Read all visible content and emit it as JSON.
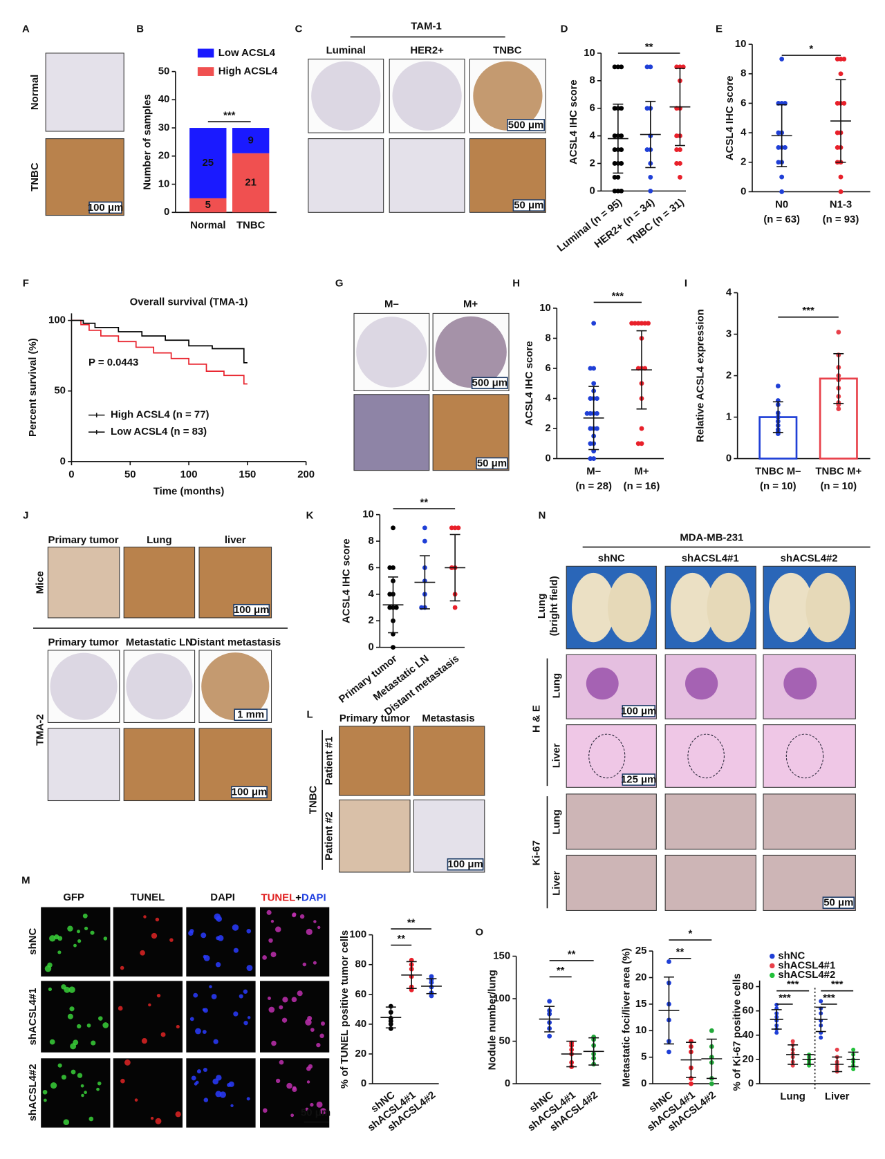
{
  "chart_data": [
    {
      "panel": "B",
      "type": "stacked_bar",
      "y_label": "Number of samples",
      "categories": [
        "Normal",
        "TNBC"
      ],
      "series": [
        {
          "name": "High ACSL4",
          "color": "#f05050",
          "values": [
            5,
            21
          ]
        },
        {
          "name": "Low ACSL4",
          "color": "#1a1aff",
          "values": [
            25,
            9
          ]
        }
      ],
      "ylim": [
        0,
        50
      ],
      "yticks": [
        0,
        10,
        20,
        30,
        40,
        50
      ],
      "significance": [
        {
          "pair": [
            0,
            1
          ],
          "label": "***"
        }
      ]
    },
    {
      "panel": "D",
      "type": "dot",
      "y_label": "ACSL4 IHC score",
      "categories": [
        "Luminal (n = 95)",
        "HER2+ (n = 34)",
        "TNBC (n = 31)"
      ],
      "groups": [
        {
          "color": "#000000",
          "values": [
            0,
            0,
            0,
            1,
            1,
            2,
            2,
            2,
            3,
            3,
            3,
            4,
            4,
            4,
            6,
            6,
            6,
            9,
            9,
            9
          ],
          "mean": 3.8,
          "sd": 2.5
        },
        {
          "color": "#1f3fd6",
          "values": [
            0,
            1,
            2,
            3,
            3,
            4,
            6,
            6,
            9,
            9
          ],
          "mean": 4.1,
          "sd": 2.4
        },
        {
          "color": "#e8202a",
          "values": [
            1,
            2,
            2,
            3,
            3,
            4,
            4,
            6,
            6,
            8,
            9,
            9,
            9
          ],
          "mean": 6.1,
          "sd": 2.8
        }
      ],
      "ylim": [
        0,
        10
      ],
      "yticks": [
        0,
        2,
        4,
        6,
        8,
        10
      ],
      "significance": [
        {
          "pair": [
            0,
            2
          ],
          "label": "**"
        }
      ]
    },
    {
      "panel": "E",
      "type": "dot",
      "y_label": "ACSL4 IHC score",
      "categories": [
        "N0",
        "N1-3"
      ],
      "category_notes": [
        "(n = 63)",
        "(n = 93)"
      ],
      "groups": [
        {
          "color": "#1f3fd6",
          "values": [
            0,
            1,
            2,
            2,
            3,
            3,
            3,
            4,
            4,
            6,
            6,
            6,
            9
          ],
          "mean": 3.8,
          "sd": 2.1
        },
        {
          "color": "#e8202a",
          "values": [
            0,
            1,
            2,
            2,
            3,
            3,
            4,
            4,
            6,
            6,
            6,
            8,
            9,
            9,
            9
          ],
          "mean": 4.8,
          "sd": 2.8
        }
      ],
      "ylim": [
        0,
        10
      ],
      "yticks": [
        0,
        2,
        4,
        6,
        8,
        10
      ],
      "significance": [
        {
          "pair": [
            0,
            1
          ],
          "label": "*"
        }
      ]
    },
    {
      "panel": "F",
      "type": "line",
      "title": "Overall survival (TMA-1)",
      "x_label": "Time (months)",
      "y_label": "Percent survival (%)",
      "annotation": "P = 0.0443",
      "xlim": [
        0,
        200
      ],
      "xticks": [
        0,
        50,
        100,
        150,
        200
      ],
      "ylim": [
        0,
        105
      ],
      "yticks": [
        0,
        50,
        100
      ],
      "series": [
        {
          "name": "High ACSL4 (n = 77)",
          "color": "#e8202a",
          "x": [
            0,
            8,
            8,
            15,
            15,
            25,
            25,
            40,
            40,
            55,
            55,
            70,
            70,
            85,
            85,
            100,
            100,
            115,
            115,
            130,
            130,
            147,
            147,
            150
          ],
          "values": [
            100,
            100,
            97,
            97,
            93,
            93,
            89,
            89,
            85,
            85,
            81,
            81,
            77,
            77,
            73,
            73,
            69,
            69,
            64,
            64,
            61,
            61,
            55,
            55
          ]
        },
        {
          "name": "Low ACSL4 (n = 83)",
          "color": "#000000",
          "x": [
            0,
            10,
            10,
            20,
            20,
            40,
            40,
            60,
            60,
            80,
            80,
            100,
            100,
            120,
            120,
            147,
            147,
            150
          ],
          "values": [
            100,
            100,
            98,
            98,
            95,
            95,
            92,
            92,
            89,
            89,
            86,
            86,
            82,
            82,
            80,
            80,
            70,
            70
          ]
        }
      ]
    },
    {
      "panel": "H",
      "type": "dot",
      "y_label": "ACSL4 IHC score",
      "categories": [
        "M–",
        "M+"
      ],
      "category_notes": [
        "(n = 28)",
        "(n = 16)"
      ],
      "groups": [
        {
          "color": "#1f3fd6",
          "values": [
            0,
            0,
            0.5,
            1,
            1,
            1.5,
            2,
            2,
            2,
            3,
            3,
            3,
            3,
            4,
            4,
            4,
            4.5,
            5,
            6,
            6,
            9
          ],
          "mean": 2.7,
          "sd": 2.1
        },
        {
          "color": "#e8202a",
          "values": [
            1,
            1,
            2,
            4,
            5,
            6,
            6,
            6,
            8,
            9,
            9,
            9,
            9,
            9,
            9
          ],
          "mean": 5.9,
          "sd": 2.6
        }
      ],
      "ylim": [
        0,
        10
      ],
      "yticks": [
        0,
        2,
        4,
        6,
        8,
        10
      ],
      "significance": [
        {
          "pair": [
            0,
            1
          ],
          "label": "***"
        }
      ]
    },
    {
      "panel": "I",
      "type": "bar_dot",
      "y_label": "Relative ACSL4 expression",
      "categories": [
        "TNBC M–",
        "TNBC M+"
      ],
      "category_notes": [
        "(n = 10)",
        "(n = 10)"
      ],
      "groups": [
        {
          "color": "#1f3fd6",
          "values": [
            0.6,
            0.65,
            0.7,
            0.8,
            0.9,
            1.0,
            1.1,
            1.3,
            1.4,
            1.75
          ],
          "mean": 1.0,
          "sd": 0.37
        },
        {
          "color": "#e8404a",
          "values": [
            1.2,
            1.3,
            1.35,
            1.5,
            1.7,
            1.9,
            2.0,
            2.2,
            2.5,
            3.05
          ],
          "mean": 1.93,
          "sd": 0.6
        }
      ],
      "ylim": [
        0,
        4
      ],
      "yticks": [
        0,
        1,
        2,
        3,
        4
      ],
      "significance": [
        {
          "pair": [
            0,
            1
          ],
          "label": "***"
        }
      ]
    },
    {
      "panel": "K",
      "type": "dot",
      "y_label": "ACSL4 IHC score",
      "categories": [
        "Primary tumor",
        "Metastatic LN",
        "Distant metastasis"
      ],
      "groups": [
        {
          "color": "#000000",
          "values": [
            0,
            1,
            2,
            3,
            3,
            3,
            4,
            4,
            5,
            6,
            6,
            9
          ],
          "mean": 3.2,
          "sd": 2.1
        },
        {
          "color": "#1f3fd6",
          "values": [
            3,
            3,
            4,
            5,
            6,
            8,
            9
          ],
          "mean": 4.9,
          "sd": 2.0
        },
        {
          "color": "#e8202a",
          "values": [
            3,
            4,
            6,
            6,
            9,
            9,
            9
          ],
          "mean": 6.0,
          "sd": 2.5
        }
      ],
      "ylim": [
        0,
        10
      ],
      "yticks": [
        0,
        2,
        4,
        6,
        8,
        10
      ],
      "significance": [
        {
          "pair": [
            0,
            2
          ],
          "label": "**"
        }
      ]
    },
    {
      "type": "dot",
      "y_label": "% of TUNEL positive tumor cells",
      "categories": [
        "shNC",
        "shACSL4#1",
        "shACSL4#2"
      ],
      "groups": [
        {
          "color": "#000000",
          "values": [
            37,
            40,
            42,
            44,
            48,
            52
          ],
          "mean": 44.5,
          "sd": 7
        },
        {
          "color": "#e8202a",
          "values": [
            63,
            65,
            72,
            77,
            80,
            83
          ],
          "mean": 73,
          "sd": 9
        },
        {
          "color": "#1f3fd6",
          "values": [
            59,
            61,
            65,
            68,
            70,
            72
          ],
          "mean": 65.5,
          "sd": 5
        }
      ],
      "ylim": [
        0,
        100
      ],
      "yticks": [
        0,
        20,
        40,
        60,
        80,
        100
      ],
      "significance": [
        {
          "pair": [
            0,
            1
          ],
          "label": "**"
        },
        {
          "pair": [
            0,
            2
          ],
          "label": "**"
        }
      ]
    },
    {
      "panel": "O",
      "type": "dot",
      "y_label": "Nodule number/lung",
      "categories": [
        "shNC",
        "shACSL4#1",
        "shACSL4#2"
      ],
      "groups": [
        {
          "color": "#1f3fd6",
          "values": [
            56,
            65,
            72,
            82,
            86,
            97
          ],
          "mean": 76,
          "sd": 15
        },
        {
          "color": "#e8202a",
          "values": [
            20,
            25,
            35,
            40,
            45,
            48
          ],
          "mean": 35,
          "sd": 15
        },
        {
          "color": "#22a83a",
          "values": [
            23,
            30,
            35,
            45,
            52,
            55
          ],
          "mean": 38,
          "sd": 16
        }
      ],
      "ylim": [
        0,
        150
      ],
      "yticks": [
        0,
        50,
        100,
        150
      ],
      "significance": [
        {
          "pair": [
            0,
            1
          ],
          "label": "**"
        },
        {
          "pair": [
            0,
            2
          ],
          "label": "**"
        }
      ]
    },
    {
      "type": "dot",
      "y_label": "Metastatic foci/liver area (%)",
      "categories": [
        "shNC",
        "shACSL4#1",
        "shACSL4#2"
      ],
      "groups": [
        {
          "color": "#1f3fd6",
          "values": [
            6,
            8,
            12,
            15,
            19,
            23
          ],
          "mean": 13.8,
          "sd": 6.3
        },
        {
          "color": "#e8202a",
          "values": [
            0,
            1,
            3,
            6,
            7,
            8
          ],
          "mean": 4.5,
          "sd": 3.3
        },
        {
          "color": "#22a83a",
          "values": [
            0,
            1,
            4,
            5,
            7,
            10
          ],
          "mean": 4.7,
          "sd": 3.7
        }
      ],
      "ylim": [
        0,
        25
      ],
      "yticks": [
        0,
        5,
        10,
        15,
        20,
        25
      ],
      "significance": [
        {
          "pair": [
            0,
            1
          ],
          "label": "**"
        },
        {
          "pair": [
            0,
            2
          ],
          "label": "*"
        }
      ]
    },
    {
      "type": "dot_grouped",
      "y_label": "% of Ki-67 positive cells",
      "categories": [
        "Lung",
        "Liver"
      ],
      "series": [
        {
          "name": "shNC",
          "color": "#1f3fd6",
          "groups": [
            {
              "values": [
                42,
                45,
                48,
                52,
                55,
                58,
                62,
                65
              ],
              "mean": 53,
              "sd": 8
            },
            {
              "values": [
                38,
                42,
                48,
                52,
                58,
                62,
                68
              ],
              "mean": 53,
              "sd": 10
            }
          ]
        },
        {
          "name": "shACSL4#1",
          "color": "#e8404a",
          "groups": [
            {
              "values": [
                15,
                18,
                22,
                25,
                28,
                32,
                35
              ],
              "mean": 24,
              "sd": 8
            },
            {
              "values": [
                10,
                12,
                14,
                16,
                18,
                22,
                28
              ],
              "mean": 16,
              "sd": 6
            }
          ]
        },
        {
          "name": "shACSL4#2",
          "color": "#22c03a",
          "groups": [
            {
              "values": [
                15,
                17,
                19,
                20,
                22,
                24
              ],
              "mean": 20,
              "sd": 4
            },
            {
              "values": [
                12,
                15,
                18,
                20,
                24,
                28
              ],
              "mean": 20,
              "sd": 6
            }
          ]
        }
      ],
      "ylim": [
        0,
        85
      ],
      "yticks": [
        0,
        20,
        40,
        60,
        80
      ],
      "significance": [
        {
          "category": 0,
          "pair": [
            0,
            1
          ],
          "label": "***"
        },
        {
          "category": 0,
          "pair": [
            0,
            2
          ],
          "label": "***"
        },
        {
          "category": 1,
          "pair": [
            0,
            1
          ],
          "label": "***"
        },
        {
          "category": 1,
          "pair": [
            0,
            2
          ],
          "label": "***"
        }
      ]
    }
  ],
  "figure_panels": [
    {
      "panel": "A",
      "row_labels": [
        "Normal",
        "TNBC"
      ],
      "scale_bars": [
        "100 μm"
      ]
    },
    {
      "panel": "C",
      "title": "TAM-1",
      "headers": [
        "Luminal",
        "HER2+",
        "TNBC"
      ],
      "scale_bars": [
        "500 μm",
        "50 μm"
      ]
    },
    {
      "panel": "G",
      "headers": [
        "M–",
        "M+"
      ],
      "scale_bars": [
        "500 μm",
        "50 μm"
      ]
    },
    {
      "panel": "J",
      "row_labels": [
        "Mice",
        "TMA-2"
      ],
      "headers": [
        "Primary tumor",
        "Lung",
        "liver"
      ],
      "headers_2": [
        "Primary tumor",
        "Metastatic LN",
        "Distant metastasis"
      ],
      "scale_bars": [
        "100 μm",
        "1 mm",
        "100 μm"
      ]
    },
    {
      "panel": "L",
      "group_label": "TNBC",
      "headers": [
        "Primary tumor",
        "Metastasis"
      ],
      "row_labels": [
        "Patient #1",
        "Patient #2"
      ],
      "scale_bars": [
        "100 μm"
      ]
    },
    {
      "panel": "N",
      "title": "MDA-MB-231",
      "headers": [
        "shNC",
        "shACSL4#1",
        "shACSL4#2"
      ],
      "row_labels": [
        "Lung",
        "(bright field)",
        "H & E",
        "Lung",
        "Liver",
        "Ki-67",
        "Lung",
        "Liver"
      ],
      "scale_bars": [
        "100 μm",
        "125 μm",
        "50 μm"
      ]
    },
    {
      "panel": "M",
      "headers": [
        {
          "text": "GFP",
          "color": "#2db82d"
        },
        {
          "text": "TUNEL",
          "color": "#e02020"
        },
        {
          "text": "DAPI",
          "color": "#2040e0"
        }
      ],
      "merged_header": [
        {
          "text": "TUNEL",
          "color": "#e02020"
        },
        {
          "text": "+",
          "color": "#000000"
        },
        {
          "text": "DAPI",
          "color": "#2040e0"
        }
      ],
      "row_labels": [
        "shNC",
        "shACSL4#1",
        "shACSL4#2"
      ],
      "scale_bars": [
        "50 μm"
      ]
    }
  ]
}
